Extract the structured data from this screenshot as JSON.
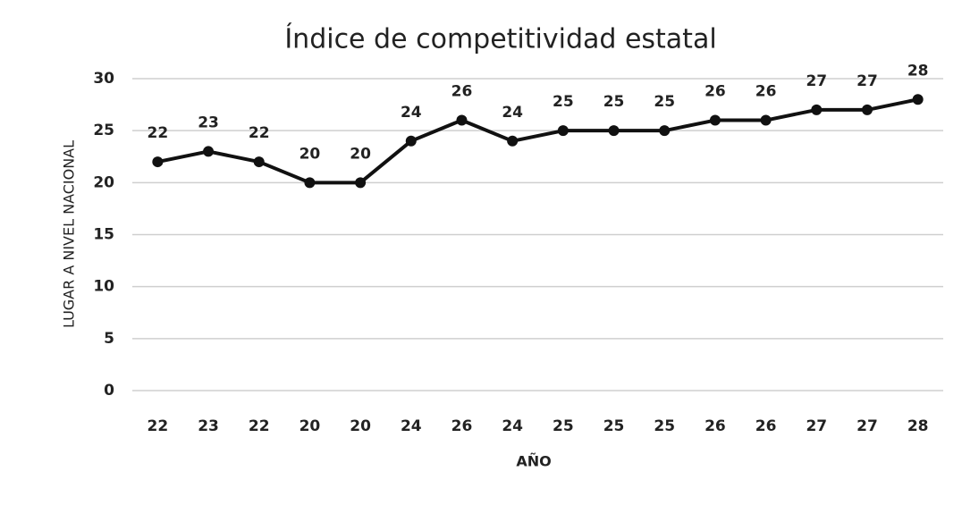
{
  "chart_data": {
    "type": "line",
    "title": "Índice de competitividad estatal",
    "x_label": "AÑO",
    "y_label": "LUGAR A NIVEL NACIONAL",
    "categories": [
      "22",
      "23",
      "22",
      "20",
      "20",
      "24",
      "26",
      "24",
      "25",
      "25",
      "25",
      "26",
      "26",
      "27",
      "27",
      "28"
    ],
    "series": [
      {
        "name": "Lugar",
        "color": "#111111",
        "values": [
          22,
          23,
          22,
          20,
          20,
          24,
          26,
          24,
          25,
          25,
          25,
          26,
          26,
          27,
          27,
          28
        ]
      }
    ],
    "ylim": [
      0,
      30
    ],
    "yticks": [
      0,
      5,
      10,
      15,
      20,
      25,
      30
    ],
    "grid": true
  }
}
